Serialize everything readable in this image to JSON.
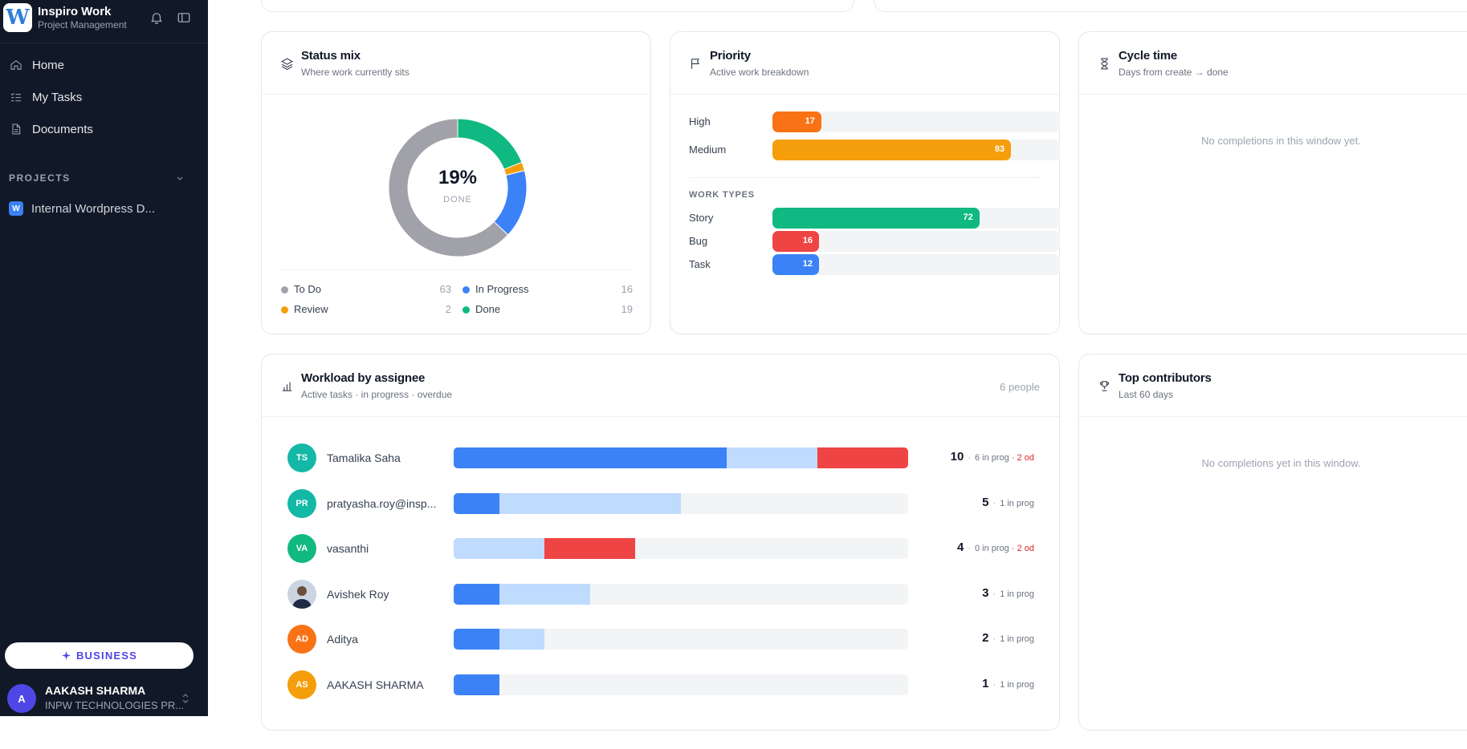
{
  "app": {
    "name": "Inspiro Work",
    "subtitle": "Project Management",
    "logo_letter": "W"
  },
  "nav": [
    {
      "label": "Home",
      "icon": "home-icon"
    },
    {
      "label": "My Tasks",
      "icon": "list-check-icon"
    },
    {
      "label": "Documents",
      "icon": "document-icon"
    }
  ],
  "projects": {
    "label": "PROJECTS",
    "items": [
      {
        "badge": "W",
        "label": "Internal Wordpress D..."
      }
    ]
  },
  "plan": {
    "label": "BUSINESS"
  },
  "user": {
    "initial": "A",
    "name": "AAKASH SHARMA",
    "org": "INPW TECHNOLOGIES PR..."
  },
  "status_mix": {
    "title": "Status mix",
    "subtitle": "Where work currently sits",
    "center_value": "19%",
    "center_label": "DONE",
    "chart_data": {
      "type": "pie",
      "categories": [
        "To Do",
        "In Progress",
        "Review",
        "Done"
      ],
      "values": [
        63,
        16,
        2,
        19
      ],
      "colors": [
        "#a1a1aa",
        "#3b82f6",
        "#f59e0b",
        "#10b981"
      ]
    },
    "legend": [
      {
        "name": "To Do",
        "count": "63",
        "color": "#a1a1aa"
      },
      {
        "name": "In Progress",
        "count": "16",
        "color": "#3b82f6"
      },
      {
        "name": "Review",
        "count": "2",
        "color": "#f59e0b"
      },
      {
        "name": "Done",
        "count": "19",
        "color": "#10b981"
      }
    ]
  },
  "priority": {
    "title": "Priority",
    "subtitle": "Active work breakdown",
    "max": 100,
    "rows": [
      {
        "label": "High",
        "value": 17,
        "color": "#f97316"
      },
      {
        "label": "Medium",
        "value": 83,
        "color": "#f59e0b"
      }
    ],
    "work_types_label": "WORK TYPES",
    "work_types": [
      {
        "label": "Story",
        "value": 72,
        "color": "#10b981"
      },
      {
        "label": "Bug",
        "value": 16,
        "color": "#ef4444"
      },
      {
        "label": "Task",
        "value": 12,
        "color": "#3b82f6"
      }
    ]
  },
  "cycle_time": {
    "title": "Cycle time",
    "subtitle": "Days from create → done",
    "empty": "No completions in this window yet."
  },
  "workload": {
    "title": "Workload by assignee",
    "subtitle": "Active tasks · in progress · overdue",
    "people_count": "6 people",
    "scale_max": 10,
    "rows": [
      {
        "initials": "TS",
        "name": "Tamalika Saha",
        "avatar_color": "#14b8a6",
        "photo": false,
        "total": 10,
        "in_progress": 6,
        "overdue": 2,
        "in_prog_label": "6 in prog",
        "overdue_label": "2 od"
      },
      {
        "initials": "PR",
        "name": "pratyasha.roy@insp...",
        "avatar_color": "#14b8a6",
        "photo": false,
        "total": 5,
        "in_progress": 1,
        "overdue": 0,
        "in_prog_label": "1 in prog",
        "overdue_label": ""
      },
      {
        "initials": "VA",
        "name": "vasanthi",
        "avatar_color": "#10b981",
        "photo": false,
        "total": 4,
        "in_progress": 0,
        "overdue": 2,
        "in_prog_label": "0 in prog",
        "overdue_label": "2 od"
      },
      {
        "initials": "",
        "name": "Avishek Roy",
        "avatar_color": "#d1d5db",
        "photo": true,
        "total": 3,
        "in_progress": 1,
        "overdue": 0,
        "in_prog_label": "1 in prog",
        "overdue_label": ""
      },
      {
        "initials": "AD",
        "name": "Aditya",
        "avatar_color": "#f97316",
        "photo": false,
        "total": 2,
        "in_progress": 1,
        "overdue": 0,
        "in_prog_label": "1 in prog",
        "overdue_label": ""
      },
      {
        "initials": "AS",
        "name": "AAKASH SHARMA",
        "avatar_color": "#f59e0b",
        "photo": false,
        "total": 1,
        "in_progress": 1,
        "overdue": 0,
        "in_prog_label": "1 in prog",
        "overdue_label": ""
      }
    ]
  },
  "top_contributors": {
    "title": "Top contributors",
    "subtitle": "Last 60 days",
    "empty": "No completions yet in this window."
  }
}
